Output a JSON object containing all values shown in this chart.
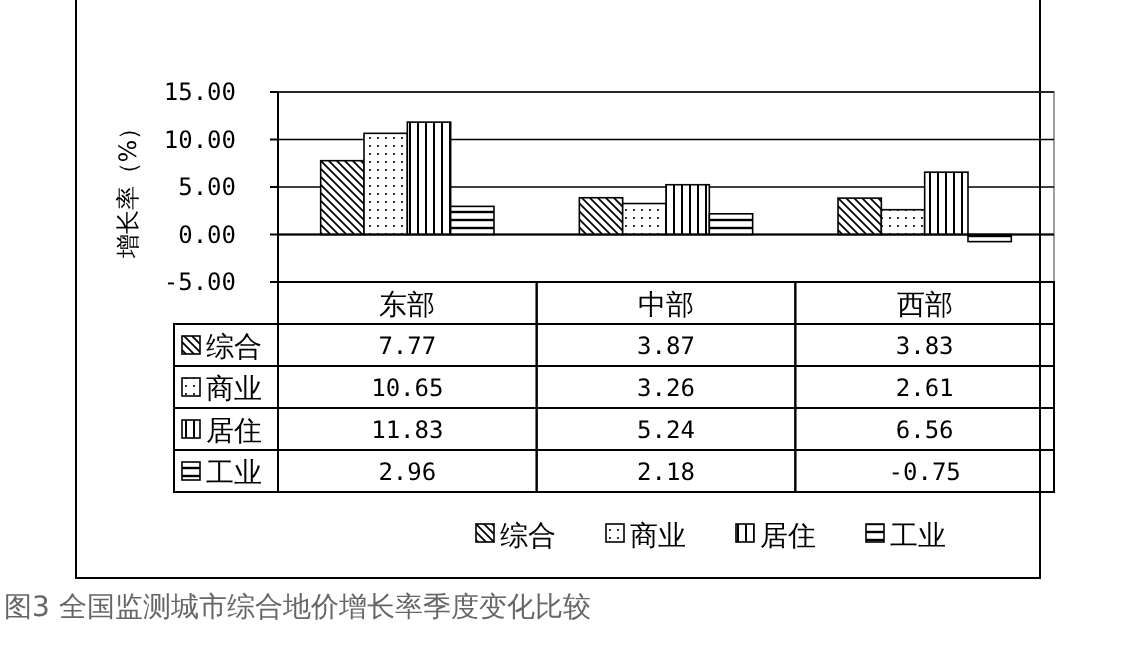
{
  "chart_data": {
    "type": "bar",
    "ylabel": "增长率（%）",
    "categories": [
      "东部",
      "中部",
      "西部"
    ],
    "series": [
      {
        "name": "综合",
        "color": "#000000",
        "values": [
          7.77,
          3.87,
          3.83
        ]
      },
      {
        "name": "商业",
        "color": "#000000",
        "values": [
          10.65,
          3.26,
          2.61
        ]
      },
      {
        "name": "居住",
        "color": "#000000",
        "values": [
          11.83,
          5.24,
          6.56
        ]
      },
      {
        "name": "工业",
        "color": "#000000",
        "values": [
          2.96,
          2.18,
          -0.75
        ]
      }
    ],
    "ylim": [
      -5,
      15
    ],
    "yticks": [
      {
        "value": -5,
        "label": "-5.00"
      },
      {
        "value": 0,
        "label": "0.00"
      },
      {
        "value": 5,
        "label": "5.00"
      },
      {
        "value": 10,
        "label": "10.00"
      },
      {
        "value": 15,
        "label": "15.00"
      }
    ],
    "grid": "y",
    "legend": "bottom",
    "data_labels": true,
    "annotations": [
      "图3 全国监测城市综合地价增长率季度变化比较"
    ]
  }
}
